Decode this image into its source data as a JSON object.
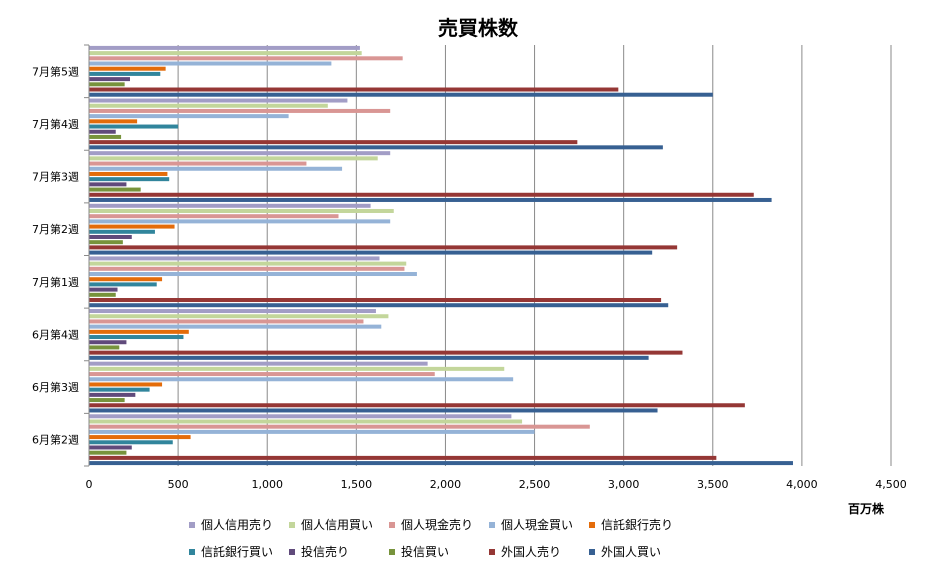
{
  "chart_data": {
    "type": "bar",
    "orientation": "horizontal",
    "title": "売買株数",
    "unit_label": "百万株",
    "xlim": [
      0,
      4500
    ],
    "x_ticks": [
      0,
      500,
      1000,
      1500,
      2000,
      2500,
      3000,
      3500,
      4000,
      4500
    ],
    "x_tick_labels": [
      "0",
      "500",
      "1,000",
      "1,500",
      "2,000",
      "2,500",
      "3,000",
      "3,500",
      "4,000",
      "4,500"
    ],
    "grid": true,
    "legend_position": "bottom",
    "categories": [
      "7月第5週",
      "7月第4週",
      "7月第3週",
      "7月第2週",
      "7月第1週",
      "6月第4週",
      "6月第3週",
      "6月第2週"
    ],
    "series": [
      {
        "name": "個人信用売り",
        "color": "#A29DC6",
        "values": [
          1520,
          1450,
          1690,
          1580,
          1630,
          1610,
          1900,
          2370
        ]
      },
      {
        "name": "個人信用買い",
        "color": "#C3D69B",
        "values": [
          1530,
          1340,
          1620,
          1710,
          1780,
          1680,
          2330,
          2430
        ]
      },
      {
        "name": "個人現金売り",
        "color": "#D99694",
        "values": [
          1760,
          1690,
          1220,
          1400,
          1770,
          1540,
          1940,
          2810
        ]
      },
      {
        "name": "個人現金買い",
        "color": "#95B3D7",
        "values": [
          1360,
          1120,
          1420,
          1690,
          1840,
          1640,
          2380,
          2500
        ]
      },
      {
        "name": "信託銀行売り",
        "color": "#E46C0A",
        "values": [
          430,
          270,
          440,
          480,
          410,
          560,
          410,
          570
        ]
      },
      {
        "name": "信託銀行買い",
        "color": "#31859C",
        "values": [
          400,
          500,
          450,
          370,
          380,
          530,
          340,
          470
        ]
      },
      {
        "name": "投信売り",
        "color": "#604A7B",
        "values": [
          230,
          150,
          210,
          240,
          160,
          210,
          260,
          240
        ]
      },
      {
        "name": "投信買い",
        "color": "#77933C",
        "values": [
          200,
          180,
          290,
          190,
          150,
          170,
          200,
          210
        ]
      },
      {
        "name": "外国人売り",
        "color": "#953735",
        "values": [
          2970,
          2740,
          3730,
          3300,
          3210,
          3330,
          3680,
          3520
        ]
      },
      {
        "name": "外国人買い",
        "color": "#376092",
        "values": [
          3500,
          3220,
          3830,
          3160,
          3250,
          3140,
          3190,
          3950
        ]
      }
    ]
  }
}
